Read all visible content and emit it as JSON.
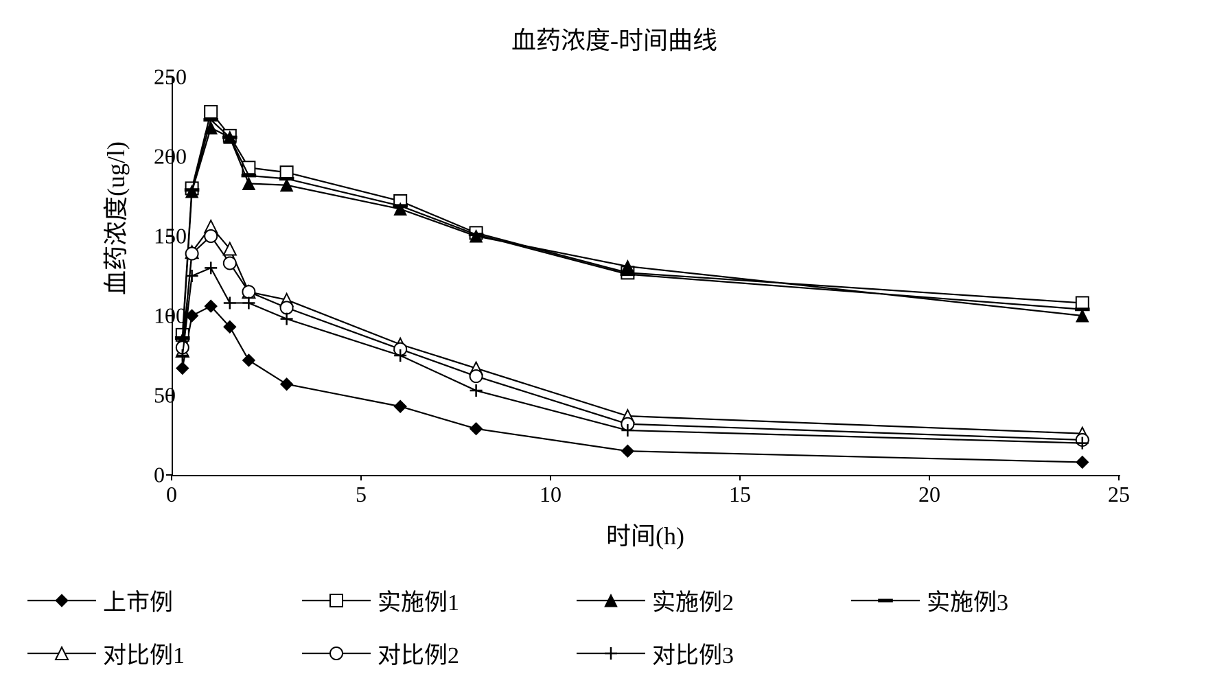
{
  "chart": {
    "type": "line",
    "title": "血药浓度-时间曲线",
    "xlabel": "时间(h)",
    "ylabel": "血药浓度(ug/l)",
    "xlim": [
      0,
      25
    ],
    "ylim": [
      0,
      250
    ],
    "xtick_step": 5,
    "ytick_step": 50,
    "xticks": [
      0,
      5,
      10,
      15,
      20,
      25
    ],
    "yticks": [
      0,
      50,
      100,
      150,
      200,
      250
    ],
    "background_color": "#ffffff",
    "axis_color": "#000000",
    "line_color": "#000000",
    "line_width": 2.2,
    "marker_size": 12,
    "title_fontsize": 36,
    "label_fontsize": 36,
    "tick_fontsize": 32,
    "legend_fontsize": 34,
    "x_values": [
      0.25,
      0.5,
      1,
      1.5,
      2,
      3,
      6,
      8,
      12,
      24
    ],
    "series": [
      {
        "name": "上市例",
        "marker": "diamond-filled",
        "y": [
          67,
          100,
          106,
          93,
          72,
          57,
          43,
          29,
          15,
          8
        ]
      },
      {
        "name": "实施例1",
        "marker": "square-open",
        "y": [
          88,
          180,
          228,
          213,
          193,
          190,
          172,
          152,
          127,
          108
        ]
      },
      {
        "name": "实施例2",
        "marker": "triangle-filled",
        "y": [
          85,
          178,
          218,
          212,
          183,
          182,
          167,
          150,
          131,
          100
        ]
      },
      {
        "name": "实施例3",
        "marker": "dash",
        "y": [
          86,
          179,
          223,
          212,
          188,
          186,
          169,
          151,
          126,
          104
        ]
      },
      {
        "name": "对比例1",
        "marker": "triangle-open",
        "y": [
          78,
          140,
          156,
          142,
          115,
          110,
          82,
          67,
          37,
          26
        ]
      },
      {
        "name": "对比例2",
        "marker": "circle-open",
        "y": [
          80,
          139,
          150,
          133,
          115,
          105,
          79,
          62,
          32,
          22
        ]
      },
      {
        "name": "对比例3",
        "marker": "plus",
        "y": [
          75,
          125,
          130,
          108,
          108,
          98,
          75,
          53,
          28,
          20
        ]
      }
    ],
    "legend_rows": [
      [
        "上市例",
        "实施例1",
        "实施例2",
        "实施例3"
      ],
      [
        "对比例1",
        "对比例2",
        "对比例3"
      ]
    ]
  }
}
